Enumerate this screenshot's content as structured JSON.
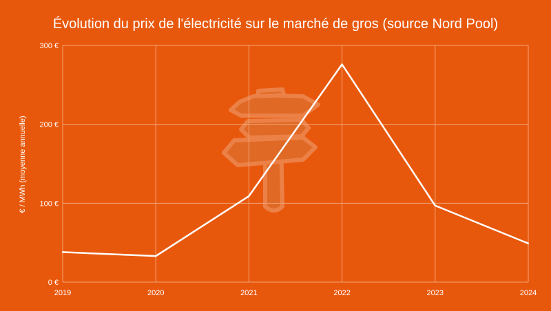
{
  "chart_data": {
    "type": "line",
    "title": "Évolution du prix de l'électricité sur le marché de gros (source Nord Pool)",
    "xlabel": "",
    "ylabel": "€ / MWh (moyenne annuelle)",
    "categories": [
      "2019",
      "2020",
      "2021",
      "2022",
      "2023",
      "2024"
    ],
    "series": [
      {
        "values": [
          38,
          33,
          109,
          276,
          97,
          49
        ]
      }
    ],
    "ylim": [
      0,
      300
    ],
    "yticks": [
      0,
      100,
      200,
      300
    ],
    "ytick_labels": [
      "0 €",
      "100 €",
      "200 €",
      "300 €"
    ],
    "grid": true,
    "legend": "none",
    "colors": {
      "background": "#E8580C",
      "line": "#FFFFFF",
      "grid": "#F3A578",
      "text": "#FFFFFF"
    },
    "decoration": "signpost-watermark-icon"
  }
}
